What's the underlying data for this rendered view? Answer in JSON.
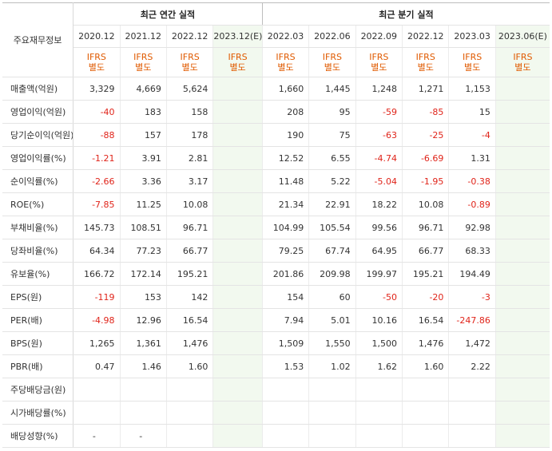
{
  "header": {
    "corner_label": "주요재무정보",
    "annual_group": "최근 연간 실적",
    "quarter_group": "최근 분기 실적",
    "annual_periods": [
      "2020.12",
      "2021.12",
      "2022.12",
      "2023.12(E)"
    ],
    "quarter_periods": [
      "2022.03",
      "2022.06",
      "2022.09",
      "2022.12",
      "2023.03",
      "2023.06(E)"
    ],
    "basis_line1": "IFRS",
    "basis_line2": "별도"
  },
  "rows": [
    {
      "label": "매출액(억원)",
      "annual": [
        "3,329",
        "4,669",
        "5,624",
        ""
      ],
      "quarter": [
        "1,660",
        "1,445",
        "1,248",
        "1,271",
        "1,153",
        ""
      ]
    },
    {
      "label": "영업이익(억원)",
      "annual": [
        "-40",
        "183",
        "158",
        ""
      ],
      "quarter": [
        "208",
        "95",
        "-59",
        "-85",
        "15",
        ""
      ]
    },
    {
      "label": "당기순이익(억원)",
      "annual": [
        "-88",
        "157",
        "178",
        ""
      ],
      "quarter": [
        "190",
        "75",
        "-63",
        "-25",
        "-4",
        ""
      ]
    },
    {
      "label": "영업이익률(%)",
      "annual": [
        "-1.21",
        "3.91",
        "2.81",
        ""
      ],
      "quarter": [
        "12.52",
        "6.55",
        "-4.74",
        "-6.69",
        "1.31",
        ""
      ]
    },
    {
      "label": "순이익률(%)",
      "annual": [
        "-2.66",
        "3.36",
        "3.17",
        ""
      ],
      "quarter": [
        "11.48",
        "5.22",
        "-5.04",
        "-1.95",
        "-0.38",
        ""
      ]
    },
    {
      "label": "ROE(%)",
      "annual": [
        "-7.85",
        "11.25",
        "10.08",
        ""
      ],
      "quarter": [
        "21.34",
        "22.91",
        "18.22",
        "10.08",
        "-0.89",
        ""
      ]
    },
    {
      "label": "부채비율(%)",
      "annual": [
        "145.73",
        "108.51",
        "96.71",
        ""
      ],
      "quarter": [
        "104.99",
        "105.54",
        "99.56",
        "96.71",
        "92.98",
        ""
      ]
    },
    {
      "label": "당좌비율(%)",
      "annual": [
        "64.34",
        "77.23",
        "66.77",
        ""
      ],
      "quarter": [
        "79.25",
        "67.74",
        "64.95",
        "66.77",
        "68.33",
        ""
      ]
    },
    {
      "label": "유보율(%)",
      "annual": [
        "166.72",
        "172.14",
        "195.21",
        ""
      ],
      "quarter": [
        "201.86",
        "209.98",
        "199.97",
        "195.21",
        "194.49",
        ""
      ]
    },
    {
      "label": "EPS(원)",
      "annual": [
        "-119",
        "153",
        "142",
        ""
      ],
      "quarter": [
        "154",
        "60",
        "-50",
        "-20",
        "-3",
        ""
      ]
    },
    {
      "label": "PER(배)",
      "annual": [
        "-4.98",
        "12.96",
        "16.54",
        ""
      ],
      "quarter": [
        "7.94",
        "5.01",
        "10.16",
        "16.54",
        "-247.86",
        ""
      ]
    },
    {
      "label": "BPS(원)",
      "annual": [
        "1,265",
        "1,361",
        "1,476",
        ""
      ],
      "quarter": [
        "1,509",
        "1,550",
        "1,500",
        "1,476",
        "1,472",
        ""
      ]
    },
    {
      "label": "PBR(배)",
      "annual": [
        "0.47",
        "1.46",
        "1.60",
        ""
      ],
      "quarter": [
        "1.53",
        "1.02",
        "1.62",
        "1.60",
        "2.22",
        ""
      ]
    },
    {
      "label": "주당배당금(원)",
      "annual": [
        "",
        "",
        "",
        ""
      ],
      "quarter": [
        "",
        "",
        "",
        "",
        "",
        ""
      ]
    },
    {
      "label": "시가배당률(%)",
      "annual": [
        "",
        "",
        "",
        ""
      ],
      "quarter": [
        "",
        "",
        "",
        "",
        "",
        ""
      ]
    },
    {
      "label": "배당성향(%)",
      "annual": [
        "-",
        "-",
        "",
        ""
      ],
      "quarter": [
        "",
        "",
        "",
        "",
        "",
        ""
      ]
    }
  ]
}
